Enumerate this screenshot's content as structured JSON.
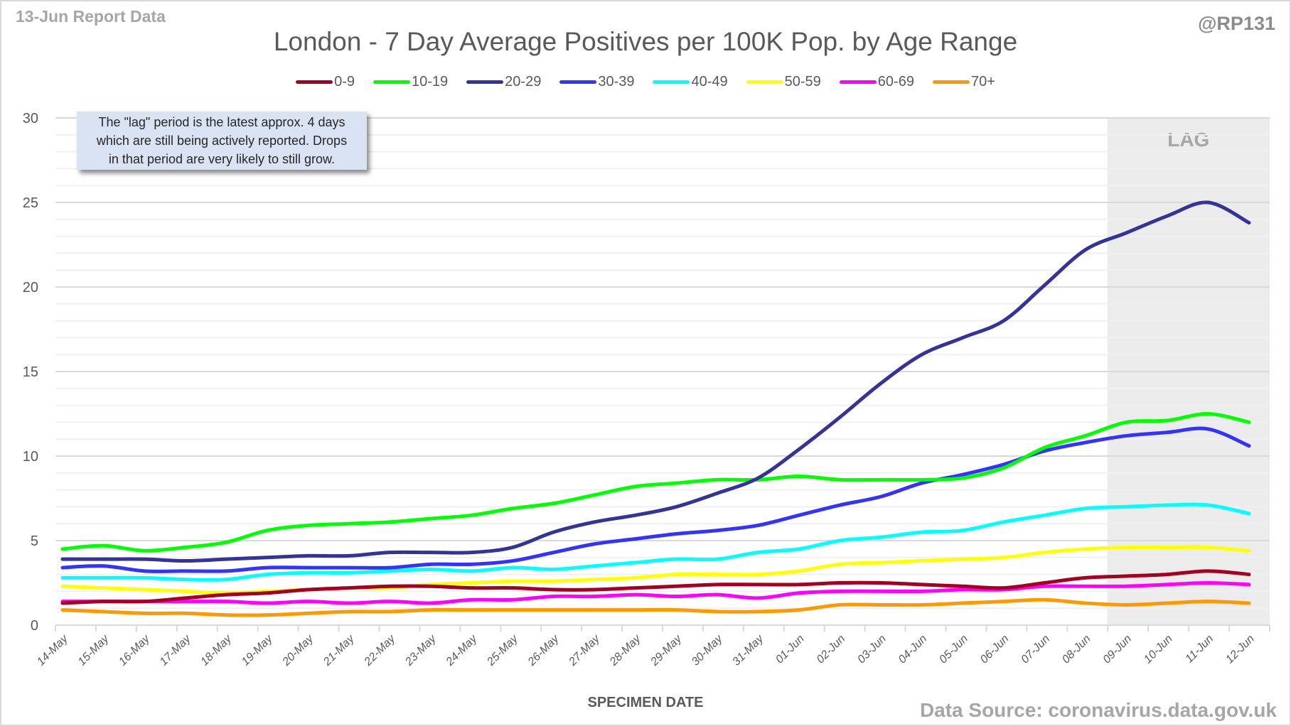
{
  "header": {
    "report_date": "13-Jun Report Data",
    "handle": "@RP131",
    "source": "Data Source: coronavirus.data.gov.uk"
  },
  "note": {
    "lines": [
      "The \"lag\" period is the latest approx. 4 days",
      "which are still being actively reported.  Drops",
      "in that period are very likely to still grow."
    ]
  },
  "chart_data": {
    "type": "line",
    "title": "London - 7 Day Average Positives per 100K Pop. by Age Range",
    "xlabel": "SPECIMEN DATE",
    "ylabel": "",
    "ylim": [
      0,
      30
    ],
    "yticks": [
      0,
      5,
      10,
      15,
      20,
      25,
      30
    ],
    "grid": true,
    "legend_position": "top-center",
    "lag_region": {
      "label": "LAG",
      "start": "09-Jun",
      "end": "12-Jun"
    },
    "x": [
      "14-May",
      "15-May",
      "16-May",
      "17-May",
      "18-May",
      "19-May",
      "20-May",
      "21-May",
      "22-May",
      "23-May",
      "24-May",
      "25-May",
      "26-May",
      "27-May",
      "28-May",
      "29-May",
      "30-May",
      "31-May",
      "01-Jun",
      "02-Jun",
      "03-Jun",
      "04-Jun",
      "05-Jun",
      "06-Jun",
      "07-Jun",
      "08-Jun",
      "09-Jun",
      "10-Jun",
      "11-Jun",
      "12-Jun"
    ],
    "series": [
      {
        "name": "0-9",
        "color": "#a50021",
        "values": [
          1.3,
          1.4,
          1.4,
          1.6,
          1.8,
          1.9,
          2.1,
          2.2,
          2.3,
          2.3,
          2.2,
          2.2,
          2.1,
          2.1,
          2.2,
          2.3,
          2.4,
          2.4,
          2.4,
          2.5,
          2.5,
          2.4,
          2.3,
          2.2,
          2.5,
          2.8,
          2.9,
          3.0,
          3.2,
          3.0
        ]
      },
      {
        "name": "10-19",
        "color": "#00ff00",
        "values": [
          4.5,
          4.7,
          4.4,
          4.6,
          4.9,
          5.6,
          5.9,
          6.0,
          6.1,
          6.3,
          6.5,
          6.9,
          7.2,
          7.7,
          8.2,
          8.4,
          8.6,
          8.6,
          8.8,
          8.6,
          8.6,
          8.6,
          8.7,
          9.3,
          10.5,
          11.2,
          12.0,
          12.1,
          12.5,
          12.0
        ]
      },
      {
        "name": "20-29",
        "color": "#333399",
        "values": [
          3.9,
          3.9,
          3.9,
          3.8,
          3.9,
          4.0,
          4.1,
          4.1,
          4.3,
          4.3,
          4.3,
          4.6,
          5.5,
          6.1,
          6.5,
          7.0,
          7.8,
          8.7,
          10.4,
          12.3,
          14.3,
          16.0,
          17.0,
          18.0,
          20.1,
          22.2,
          23.2,
          24.2,
          25.0,
          23.8
        ]
      },
      {
        "name": "30-39",
        "color": "#3333ff",
        "values": [
          3.4,
          3.5,
          3.2,
          3.2,
          3.2,
          3.4,
          3.4,
          3.4,
          3.4,
          3.6,
          3.6,
          3.8,
          4.3,
          4.8,
          5.1,
          5.4,
          5.6,
          5.9,
          6.5,
          7.1,
          7.6,
          8.4,
          8.9,
          9.5,
          10.3,
          10.8,
          11.2,
          11.4,
          11.6,
          10.6
        ]
      },
      {
        "name": "40-49",
        "color": "#00ffff",
        "values": [
          2.8,
          2.8,
          2.8,
          2.7,
          2.7,
          3.0,
          3.1,
          3.1,
          3.2,
          3.3,
          3.2,
          3.4,
          3.3,
          3.5,
          3.7,
          3.9,
          3.9,
          4.3,
          4.5,
          5.0,
          5.2,
          5.5,
          5.6,
          6.1,
          6.5,
          6.9,
          7.0,
          7.1,
          7.1,
          6.6
        ]
      },
      {
        "name": "50-59",
        "color": "#ffff00",
        "values": [
          2.3,
          2.2,
          2.1,
          2.0,
          1.9,
          2.0,
          2.1,
          2.2,
          2.2,
          2.4,
          2.5,
          2.6,
          2.6,
          2.7,
          2.8,
          3.0,
          3.0,
          3.0,
          3.2,
          3.6,
          3.7,
          3.8,
          3.9,
          4.0,
          4.3,
          4.5,
          4.6,
          4.6,
          4.6,
          4.4
        ]
      },
      {
        "name": "60-69",
        "color": "#ff00ff",
        "values": [
          1.4,
          1.4,
          1.4,
          1.4,
          1.4,
          1.3,
          1.4,
          1.3,
          1.4,
          1.3,
          1.5,
          1.5,
          1.7,
          1.7,
          1.8,
          1.7,
          1.8,
          1.6,
          1.9,
          2.0,
          2.0,
          2.0,
          2.1,
          2.1,
          2.3,
          2.3,
          2.3,
          2.4,
          2.5,
          2.4
        ]
      },
      {
        "name": "70+",
        "color": "#ff9900",
        "values": [
          0.9,
          0.8,
          0.7,
          0.7,
          0.6,
          0.6,
          0.7,
          0.8,
          0.8,
          0.9,
          0.9,
          0.9,
          0.9,
          0.9,
          0.9,
          0.9,
          0.8,
          0.8,
          0.9,
          1.2,
          1.2,
          1.2,
          1.3,
          1.4,
          1.5,
          1.3,
          1.2,
          1.3,
          1.4,
          1.3
        ]
      }
    ]
  }
}
